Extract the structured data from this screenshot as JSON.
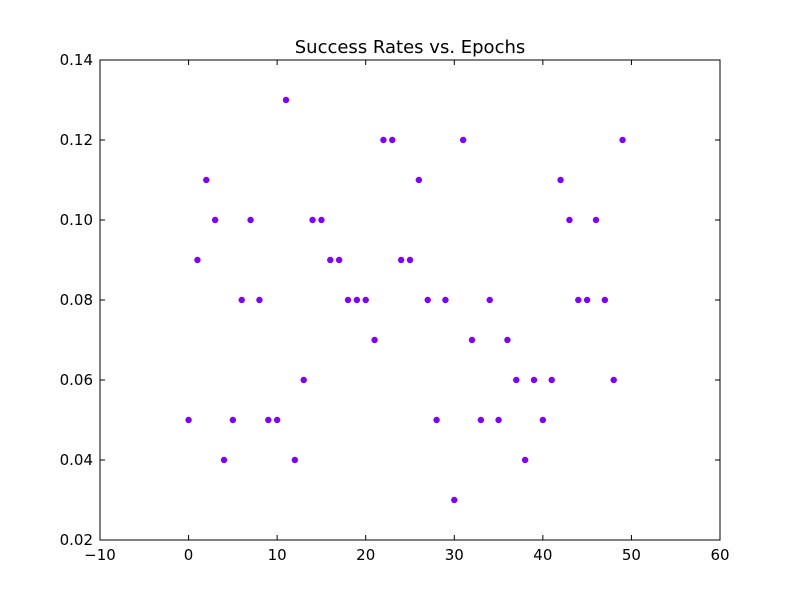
{
  "chart_data": {
    "type": "scatter",
    "title": "Success Rates vs. Epochs",
    "xlabel": "",
    "ylabel": "",
    "xlim": [
      -10,
      60
    ],
    "ylim": [
      0.02,
      0.14
    ],
    "x_ticks": [
      -10,
      0,
      10,
      20,
      30,
      40,
      50,
      60
    ],
    "y_ticks": [
      0.02,
      0.04,
      0.06,
      0.08,
      0.1,
      0.12,
      0.14
    ],
    "x_tick_labels": [
      "−10",
      "0",
      "10",
      "20",
      "30",
      "40",
      "50",
      "60"
    ],
    "y_tick_labels": [
      "0.02",
      "0.04",
      "0.06",
      "0.08",
      "0.10",
      "0.12",
      "0.14"
    ],
    "grid": false,
    "series": [
      {
        "color": "#7f00ff",
        "x": [
          0,
          1,
          2,
          3,
          4,
          5,
          6,
          7,
          8,
          9,
          10,
          11,
          12,
          13,
          14,
          15,
          16,
          17,
          18,
          19,
          20,
          21,
          22,
          23,
          24,
          25,
          26,
          27,
          28,
          29,
          30,
          31,
          32,
          33,
          34,
          35,
          36,
          37,
          38,
          39,
          40,
          41,
          42,
          43,
          44,
          45,
          46,
          47,
          48,
          49
        ],
        "y": [
          0.05,
          0.09,
          0.11,
          0.1,
          0.04,
          0.05,
          0.08,
          0.1,
          0.08,
          0.05,
          0.05,
          0.13,
          0.04,
          0.06,
          0.1,
          0.1,
          0.09,
          0.09,
          0.08,
          0.08,
          0.08,
          0.07,
          0.12,
          0.12,
          0.09,
          0.09,
          0.11,
          0.08,
          0.05,
          0.08,
          0.03,
          0.12,
          0.07,
          0.05,
          0.08,
          0.05,
          0.07,
          0.06,
          0.04,
          0.06,
          0.05,
          0.06,
          0.11,
          0.1,
          0.08,
          0.08,
          0.1,
          0.08,
          0.06,
          0.12
        ]
      }
    ]
  }
}
